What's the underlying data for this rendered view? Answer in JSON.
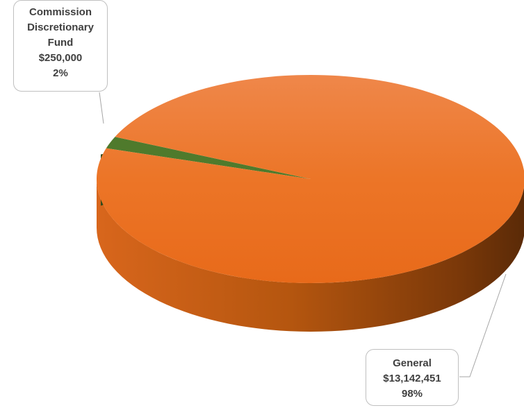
{
  "chart_data": {
    "type": "pie",
    "style": "3d",
    "slices": [
      {
        "label": "Commission Discretionary Fund",
        "label_lines": [
          "Commission",
          "Discretionary",
          "Fund"
        ],
        "value_text": "$250,000",
        "value": 250000,
        "percent_text": "2%",
        "color": "#4f7a2c"
      },
      {
        "label": "General",
        "label_lines": [
          "General"
        ],
        "value_text": "$13,142,451",
        "value": 13142451,
        "percent_text": "98%",
        "color": "#ec7424"
      }
    ],
    "legend": "none",
    "data_labels": "callouts"
  }
}
